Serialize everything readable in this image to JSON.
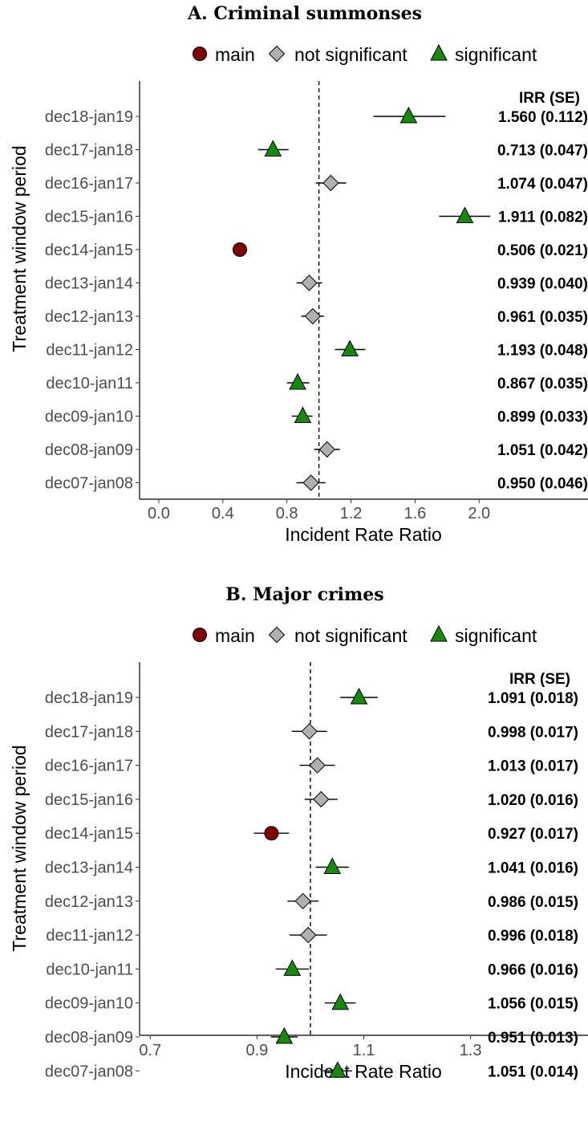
{
  "legend": {
    "items": [
      {
        "key": "main",
        "label": "main",
        "shape": "circle",
        "color": "#7f0000"
      },
      {
        "key": "ns",
        "label": "not significant",
        "shape": "diamond",
        "color": "#b0b0b0"
      },
      {
        "key": "sig",
        "label": "significant",
        "shape": "triangle",
        "color": "#178a0e"
      }
    ]
  },
  "chart_data": [
    {
      "type": "scatter",
      "title": "A. Criminal summonses",
      "xlabel": "Incident Rate Ratio",
      "ylabel": "Treatment window period",
      "xlim": [
        -0.12,
        2.68
      ],
      "xticks": [
        0.0,
        0.4,
        0.8,
        1.2,
        1.6,
        2.0
      ],
      "xtick_labels": [
        "0.0",
        "0.4",
        "0.8",
        "1.2",
        "1.6",
        "2.0"
      ],
      "reference_line": 1.0,
      "annotation_header": "IRR   (SE)",
      "rows": [
        {
          "label": "dec18-jan19",
          "irr": 1.56,
          "lo": 1.34,
          "hi": 1.79,
          "status": "sig",
          "text": "1.560 (0.112)"
        },
        {
          "label": "dec17-jan18",
          "irr": 0.713,
          "lo": 0.62,
          "hi": 0.81,
          "status": "sig",
          "text": "0.713 (0.047)"
        },
        {
          "label": "dec16-jan17",
          "irr": 1.074,
          "lo": 0.98,
          "hi": 1.17,
          "status": "ns",
          "text": "1.074 (0.047)"
        },
        {
          "label": "dec15-jan16",
          "irr": 1.911,
          "lo": 1.75,
          "hi": 2.07,
          "status": "sig",
          "text": "1.911 (0.082)"
        },
        {
          "label": "dec14-jan15",
          "irr": 0.506,
          "lo": 0.47,
          "hi": 0.55,
          "status": "main",
          "text": "0.506 (0.021)"
        },
        {
          "label": "dec13-jan14",
          "irr": 0.939,
          "lo": 0.86,
          "hi": 1.02,
          "status": "ns",
          "text": "0.939 (0.040)"
        },
        {
          "label": "dec12-jan13",
          "irr": 0.961,
          "lo": 0.89,
          "hi": 1.03,
          "status": "ns",
          "text": "0.961 (0.035)"
        },
        {
          "label": "dec11-jan12",
          "irr": 1.193,
          "lo": 1.1,
          "hi": 1.29,
          "status": "sig",
          "text": "1.193 (0.048)"
        },
        {
          "label": "dec10-jan11",
          "irr": 0.867,
          "lo": 0.8,
          "hi": 0.94,
          "status": "sig",
          "text": "0.867 (0.035)"
        },
        {
          "label": "dec09-jan10",
          "irr": 0.899,
          "lo": 0.83,
          "hi": 0.96,
          "status": "sig",
          "text": "0.899 (0.033)"
        },
        {
          "label": "dec08-jan09",
          "irr": 1.051,
          "lo": 0.97,
          "hi": 1.13,
          "status": "ns",
          "text": "1.051 (0.042)"
        },
        {
          "label": "dec07-jan08",
          "irr": 0.95,
          "lo": 0.86,
          "hi": 1.04,
          "status": "ns",
          "text": "0.950 (0.046)"
        }
      ]
    },
    {
      "type": "scatter",
      "title": "B. Major crimes",
      "xlabel": "Incident Rate Ratio",
      "ylabel": "Treatment window period",
      "xlim": [
        0.68,
        1.52
      ],
      "xticks": [
        0.7,
        0.9,
        1.1,
        1.3
      ],
      "xtick_labels": [
        "0.7",
        "0.9",
        "1.1",
        "1.3"
      ],
      "reference_line": 1.0,
      "annotation_header": "IRR   (SE)",
      "rows": [
        {
          "label": "dec18-jan19",
          "irr": 1.091,
          "lo": 1.056,
          "hi": 1.126,
          "status": "sig",
          "text": "1.091 (0.018)"
        },
        {
          "label": "dec17-jan18",
          "irr": 0.998,
          "lo": 0.965,
          "hi": 1.031,
          "status": "ns",
          "text": "0.998 (0.017)"
        },
        {
          "label": "dec16-jan17",
          "irr": 1.013,
          "lo": 0.98,
          "hi": 1.046,
          "status": "ns",
          "text": "1.013 (0.017)"
        },
        {
          "label": "dec15-jan16",
          "irr": 1.02,
          "lo": 0.989,
          "hi": 1.051,
          "status": "ns",
          "text": "1.020 (0.016)"
        },
        {
          "label": "dec14-jan15",
          "irr": 0.927,
          "lo": 0.894,
          "hi": 0.96,
          "status": "main",
          "text": "0.927 (0.017)"
        },
        {
          "label": "dec13-jan14",
          "irr": 1.041,
          "lo": 1.01,
          "hi": 1.072,
          "status": "sig",
          "text": "1.041 (0.016)"
        },
        {
          "label": "dec12-jan13",
          "irr": 0.986,
          "lo": 0.957,
          "hi": 1.015,
          "status": "ns",
          "text": "0.986 (0.015)"
        },
        {
          "label": "dec11-jan12",
          "irr": 0.996,
          "lo": 0.961,
          "hi": 1.031,
          "status": "ns",
          "text": "0.996 (0.018)"
        },
        {
          "label": "dec10-jan11",
          "irr": 0.966,
          "lo": 0.935,
          "hi": 0.997,
          "status": "sig",
          "text": "0.966 (0.016)"
        },
        {
          "label": "dec09-jan10",
          "irr": 1.056,
          "lo": 1.027,
          "hi": 1.085,
          "status": "sig",
          "text": "1.056 (0.015)"
        },
        {
          "label": "dec08-jan09",
          "irr": 0.951,
          "lo": 0.926,
          "hi": 0.976,
          "status": "sig",
          "text": "0.951 (0.013)"
        },
        {
          "label": "dec07-jan08",
          "irr": 1.051,
          "lo": 1.024,
          "hi": 1.078,
          "status": "sig",
          "text": "1.051 (0.014)"
        }
      ]
    }
  ]
}
